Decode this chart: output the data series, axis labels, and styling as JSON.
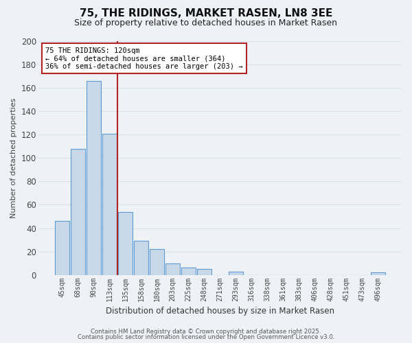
{
  "title": "75, THE RIDINGS, MARKET RASEN, LN8 3EE",
  "subtitle": "Size of property relative to detached houses in Market Rasen",
  "xlabel": "Distribution of detached houses by size in Market Rasen",
  "ylabel": "Number of detached properties",
  "categories": [
    "45sqm",
    "68sqm",
    "90sqm",
    "113sqm",
    "135sqm",
    "158sqm",
    "180sqm",
    "203sqm",
    "225sqm",
    "248sqm",
    "271sqm",
    "293sqm",
    "316sqm",
    "338sqm",
    "361sqm",
    "383sqm",
    "406sqm",
    "428sqm",
    "451sqm",
    "473sqm",
    "496sqm"
  ],
  "values": [
    46,
    108,
    166,
    121,
    54,
    29,
    22,
    10,
    6,
    5,
    0,
    3,
    0,
    0,
    0,
    0,
    0,
    0,
    0,
    0,
    2
  ],
  "bar_color": "#c8d8e8",
  "bar_edge_color": "#5b9bd5",
  "vline_color": "#b22222",
  "annotation_title": "75 THE RIDINGS: 120sqm",
  "annotation_line1": "← 64% of detached houses are smaller (364)",
  "annotation_line2": "36% of semi-detached houses are larger (203) →",
  "ylim": [
    0,
    200
  ],
  "yticks": [
    0,
    20,
    40,
    60,
    80,
    100,
    120,
    140,
    160,
    180,
    200
  ],
  "background_color": "#eef2f7",
  "grid_color": "#d8e0ec",
  "footer1": "Contains HM Land Registry data © Crown copyright and database right 2025.",
  "footer2": "Contains public sector information licensed under the Open Government Licence v3.0."
}
